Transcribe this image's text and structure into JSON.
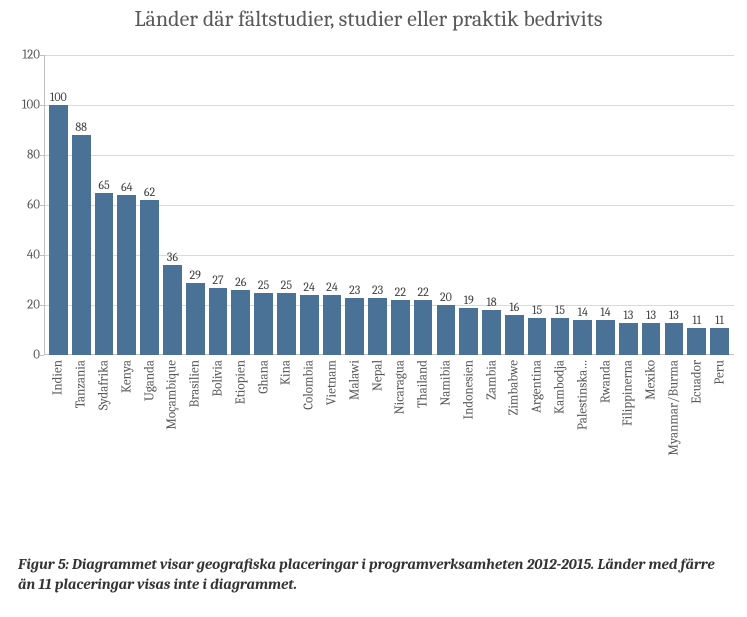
{
  "chart": {
    "type": "bar",
    "title": "Länder där fältstudier, studier eller praktik bedrivits",
    "title_fontsize": 22,
    "title_color": "#595959",
    "label_fontsize": 13,
    "value_label_fontsize": 12,
    "text_color": "#595959",
    "background_color": "#ffffff",
    "grid_color": "#d9d9d9",
    "axis_color": "#bfbfbf",
    "bar_color": "#4a7196",
    "bar_width": 0.82,
    "ylim": [
      0,
      120
    ],
    "ytick_step": 20,
    "yticks": [
      0,
      20,
      40,
      60,
      80,
      100,
      120
    ],
    "categories": [
      "Indien",
      "Tanzania",
      "Sydafrika",
      "Kenya",
      "Uganda",
      "Moçambique",
      "Brasilien",
      "Bolivia",
      "Etiopien",
      "Ghana",
      "Kina",
      "Colombia",
      "Vietnam",
      "Malawi",
      "Nepal",
      "Nicaragua",
      "Thailand",
      "Namibia",
      "Indonesien",
      "Zambia",
      "Zimbabwe",
      "Argentina",
      "Kambodja",
      "Palestinska…",
      "Rwanda",
      "Filippinerna",
      "Mexiko",
      "Myanmar/Burma",
      "Ecuador",
      "Peru"
    ],
    "values": [
      100,
      88,
      65,
      64,
      62,
      36,
      29,
      27,
      26,
      25,
      25,
      24,
      24,
      23,
      23,
      22,
      22,
      20,
      19,
      18,
      16,
      15,
      15,
      14,
      14,
      13,
      13,
      13,
      11,
      11
    ]
  },
  "caption": {
    "text": "Figur 5: Diagrammet visar geografiska placeringar i programverksamheten 2012-2015. Länder med färre än 11 placeringar visas inte i diagrammet.",
    "fontsize": 15,
    "color": "#333333",
    "font_style": "italic",
    "font_weight": "bold"
  }
}
